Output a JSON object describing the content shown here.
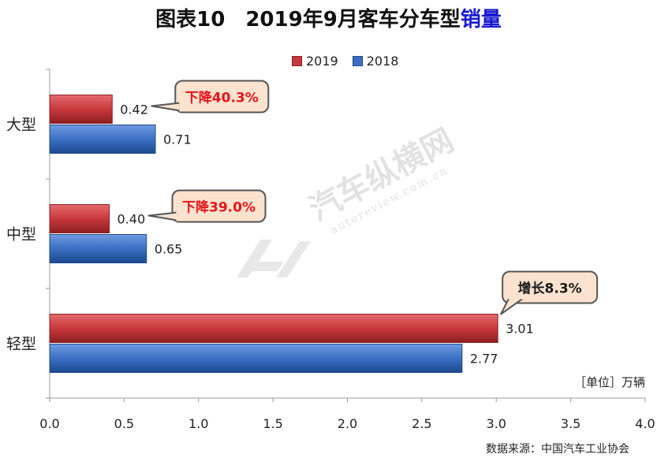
{
  "header": {
    "fig_no": "图表10",
    "title_main": "2019年9月客车分车型",
    "title_accent": "销量"
  },
  "unit": "［单位］万辆",
  "source": "数据来源：中国汽车工业协会",
  "watermark": {
    "brand": "汽车纵横网",
    "site": "autoreview.com.cn"
  },
  "colors": {
    "series_2019": "#c8383c",
    "series_2019_dark": "#8c1f22",
    "series_2018": "#3a6fc4",
    "series_2018_dark": "#1d4a8e",
    "callout_fill": "#fbe3cf",
    "callout_text_down": "#e8141b",
    "callout_text_up": "#1a1a1a"
  },
  "chart_data": {
    "type": "bar",
    "orientation": "horizontal",
    "categories": [
      "大型",
      "中型",
      "轻型"
    ],
    "series": [
      {
        "name": "2019",
        "values": [
          0.42,
          0.4,
          3.01
        ]
      },
      {
        "name": "2018",
        "values": [
          0.71,
          0.65,
          2.77
        ]
      }
    ],
    "value_labels": {
      "2019": [
        "0.42",
        "0.40",
        "3.01"
      ],
      "2018": [
        "0.71",
        "0.65",
        "2.77"
      ]
    },
    "xlim": [
      0,
      4.0
    ],
    "xticks": [
      "0.0",
      "0.5",
      "1.0",
      "1.5",
      "2.0",
      "2.5",
      "3.0",
      "3.5",
      "4.0"
    ],
    "legend_position": "top-center",
    "grid": false,
    "annotations": [
      {
        "category": "大型",
        "text": "下降40.3%",
        "kind": "down"
      },
      {
        "category": "中型",
        "text": "下降39.0%",
        "kind": "down"
      },
      {
        "category": "轻型",
        "text": "增长8.3%",
        "kind": "up"
      }
    ]
  }
}
